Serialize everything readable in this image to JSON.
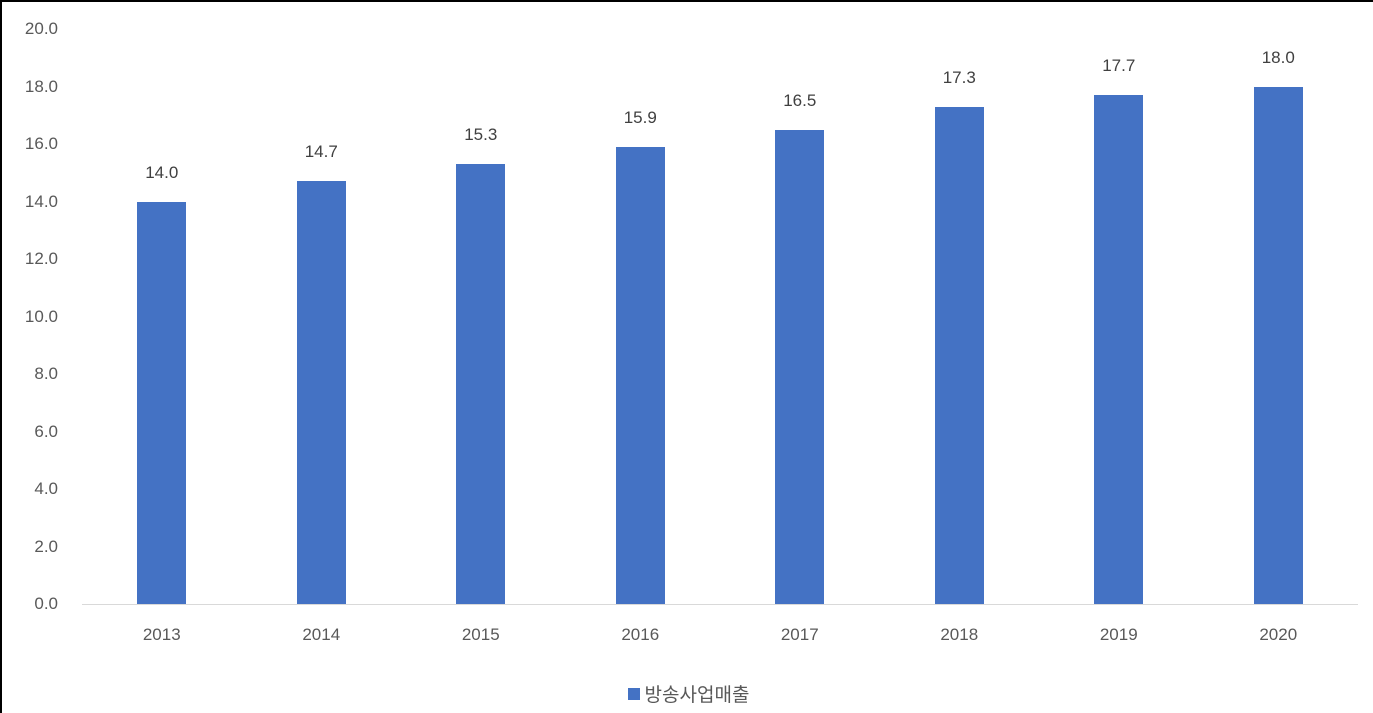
{
  "chart_data": {
    "type": "bar",
    "title": "",
    "xlabel": "",
    "ylabel": "",
    "categories": [
      "2013",
      "2014",
      "2015",
      "2016",
      "2017",
      "2018",
      "2019",
      "2020"
    ],
    "series": [
      {
        "name": "방송사업매출",
        "color": "#4472c4",
        "values": [
          14.0,
          14.7,
          15.3,
          15.9,
          16.5,
          17.3,
          17.7,
          18.0
        ],
        "value_labels": [
          "14.0",
          "14.7",
          "15.3",
          "15.9",
          "16.5",
          "17.3",
          "17.7",
          "18.0"
        ]
      }
    ],
    "ylim": [
      0,
      20
    ],
    "y_ticks": [
      "0.0",
      "2.0",
      "4.0",
      "6.0",
      "8.0",
      "10.0",
      "12.0",
      "14.0",
      "16.0",
      "18.0",
      "20.0"
    ],
    "grid": false,
    "data_labels": true,
    "legend_position": "bottom"
  },
  "legend": {
    "label": "방송사업매출"
  }
}
